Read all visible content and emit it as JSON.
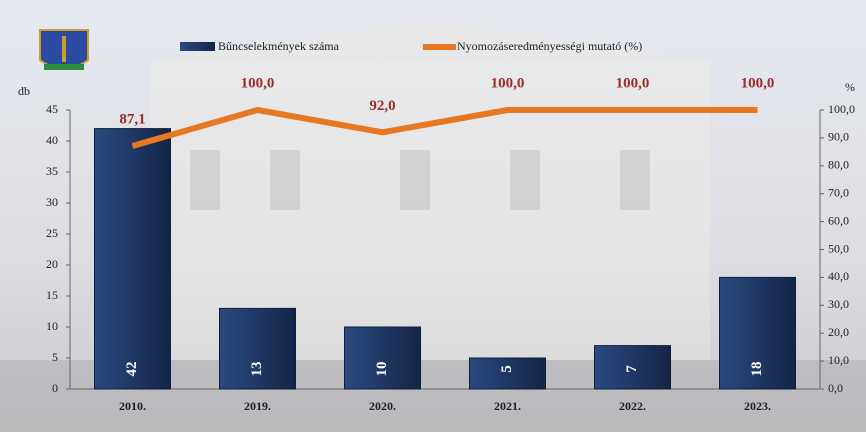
{
  "chart_data": {
    "type": "bar-line",
    "categories": [
      "2010.",
      "2019.",
      "2020.",
      "2021.",
      "2022.",
      "2023."
    ],
    "series": [
      {
        "name": "Bűncselekmények száma",
        "color": "#1f3864",
        "type": "bar",
        "values": [
          42,
          13,
          10,
          5,
          7,
          18
        ]
      },
      {
        "name": "Nyomozáseredményességi mutató (%)",
        "color": "#e87722",
        "type": "line",
        "axis": "y2",
        "values": [
          87.1,
          100,
          92,
          100,
          100,
          100
        ],
        "value_labels": [
          "87,1",
          "100,0",
          "92,0",
          "100,0",
          "100,0",
          "100,0"
        ]
      }
    ],
    "ylabel": "db",
    "y2label": "%",
    "ylim": [
      0,
      45
    ],
    "yticks": [
      0,
      5,
      10,
      15,
      20,
      25,
      30,
      35,
      40,
      45
    ],
    "y2lim": [
      0,
      100
    ],
    "y2ticks": [
      {
        "value": 0,
        "label": "0,0"
      },
      {
        "value": 10,
        "label": "10,0"
      },
      {
        "value": 20,
        "label": "20,0"
      },
      {
        "value": 30,
        "label": "30,0"
      },
      {
        "value": 40,
        "label": "40,0"
      },
      {
        "value": 50,
        "label": "50,0"
      },
      {
        "value": 60,
        "label": "60,0"
      },
      {
        "value": 70,
        "label": "70,0"
      },
      {
        "value": 80,
        "label": "80,0"
      },
      {
        "value": 90,
        "label": "90,0"
      },
      {
        "value": 100,
        "label": "100,0"
      }
    ]
  }
}
